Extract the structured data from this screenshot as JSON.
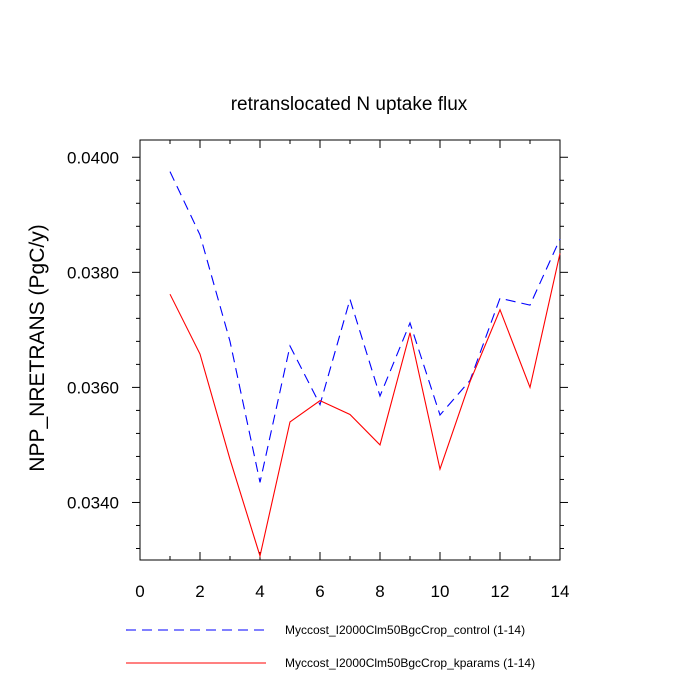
{
  "chart_data": {
    "type": "line",
    "title": "retranslocated N uptake flux",
    "xlabel": "",
    "ylabel": "NPP_NRETRANS  (PgC/y)",
    "xlim": [
      0,
      14
    ],
    "ylim": [
      0.033,
      0.0403
    ],
    "xticks": [
      0,
      2,
      4,
      6,
      8,
      10,
      12,
      14
    ],
    "xtick_labels": [
      "0",
      "2",
      "4",
      "6",
      "8",
      "10",
      "12",
      "14"
    ],
    "yticks": [
      0.034,
      0.036,
      0.038,
      0.04
    ],
    "ytick_labels": [
      "0.0340",
      "0.0360",
      "0.0380",
      "0.0400"
    ],
    "grid": false,
    "legend_position": "bottom",
    "series": [
      {
        "name": "Myccost_I2000Clm50BgcCrop_control (1-14)",
        "color": "#0000ff",
        "dash": "dashed",
        "x": [
          1,
          2,
          3,
          4,
          5,
          6,
          7,
          8,
          9,
          10,
          11,
          12,
          13,
          14
        ],
        "y": [
          0.03975,
          0.03865,
          0.0368,
          0.03435,
          0.03672,
          0.0357,
          0.03753,
          0.03585,
          0.03712,
          0.03552,
          0.03612,
          0.03755,
          0.03743,
          0.03858
        ]
      },
      {
        "name": "Myccost_I2000Clm50BgcCrop_kparams (1-14)",
        "color": "#ff0000",
        "dash": "solid",
        "x": [
          1,
          2,
          3,
          4,
          5,
          6,
          7,
          8,
          9,
          10,
          11,
          12,
          13,
          14
        ],
        "y": [
          0.03762,
          0.03658,
          0.03475,
          0.03307,
          0.0354,
          0.03577,
          0.03553,
          0.035,
          0.03695,
          0.03458,
          0.0361,
          0.03735,
          0.036,
          0.03833
        ]
      }
    ]
  }
}
